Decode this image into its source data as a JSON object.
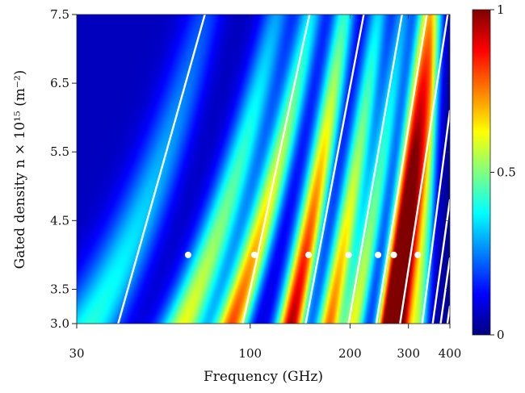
{
  "chart_data": {
    "type": "heatmap",
    "title": "",
    "xlabel": "Frequency (GHz)",
    "ylabel": "Gated density n × 10¹⁵ (m⁻²)",
    "xlim": [
      30,
      400
    ],
    "ylim": [
      3.0,
      7.5
    ],
    "x_ticks": [
      {
        "value": 30,
        "label": "30"
      },
      {
        "value": 100,
        "label": "100"
      },
      {
        "value": 200,
        "label": "200"
      },
      {
        "value": 300,
        "label": "300"
      },
      {
        "value": 400,
        "label": "400"
      }
    ],
    "y_ticks": [
      {
        "value": 3.0,
        "label": "3.0"
      },
      {
        "value": 3.5,
        "label": "3.5"
      },
      {
        "value": 4.5,
        "label": "4.5"
      },
      {
        "value": 5.5,
        "label": "5.5"
      },
      {
        "value": 6.5,
        "label": "6.5"
      },
      {
        "value": 7.5,
        "label": "7.5"
      }
    ],
    "colorbar": {
      "min": 0,
      "max": 1,
      "colormap": "jet",
      "ticks": [
        {
          "value": 0,
          "label": "0"
        },
        {
          "value": 0.5,
          "label": "0.5"
        },
        {
          "value": 1,
          "label": "1"
        }
      ]
    },
    "resonance_bands": [
      {
        "f_at_n3": 33,
        "f_at_n75": 73,
        "peak": 0.35
      },
      {
        "f_at_n3": 63,
        "f_at_n75": 120,
        "peak": 0.55
      },
      {
        "f_at_n3": 88,
        "f_at_n75": 152,
        "peak": 0.75
      },
      {
        "f_at_n3": 133,
        "f_at_n75": 192,
        "peak": 0.9
      },
      {
        "f_at_n3": 173,
        "f_at_n75": 243,
        "peak": 0.7
      },
      {
        "f_at_n3": 205,
        "f_at_n75": 288,
        "peak": 0.55
      },
      {
        "f_at_n3": 260,
        "f_at_n75": 338,
        "peak": 1.0
      },
      {
        "f_at_n3": 285,
        "f_at_n75": 360,
        "peak": 0.85
      },
      {
        "f_at_n3": 320,
        "f_at_n75": 375,
        "peak": 0.45
      }
    ],
    "white_lines": [
      {
        "f_at_n3": 40,
        "f_at_n75": 73
      },
      {
        "f_at_n3": 95,
        "f_at_n75": 151
      },
      {
        "f_at_n3": 147,
        "f_at_n75": 220
      },
      {
        "f_at_n3": 198,
        "f_at_n75": 287
      },
      {
        "f_at_n3": 240,
        "f_at_n75": 341
      },
      {
        "f_at_n3": 283,
        "f_at_n75": 394
      },
      {
        "points": [
          [
            330,
            3.0
          ],
          [
            400,
            6.1
          ]
        ]
      },
      {
        "points": [
          [
            355,
            3.0
          ],
          [
            400,
            4.8
          ]
        ]
      },
      {
        "points": [
          [
            375,
            3.0
          ],
          [
            400,
            3.95
          ]
        ]
      },
      {
        "points": [
          [
            393,
            3.0
          ],
          [
            400,
            3.25
          ]
        ]
      }
    ],
    "markers": {
      "density": 4.0,
      "frequencies": [
        65,
        103,
        150,
        198,
        243,
        271,
        320
      ]
    }
  }
}
